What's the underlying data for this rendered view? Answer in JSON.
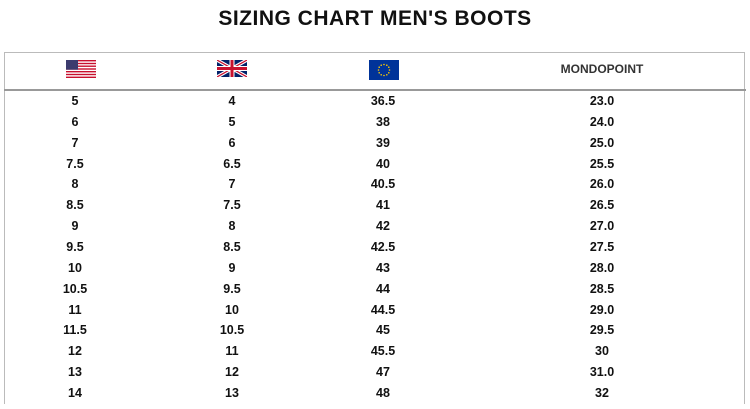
{
  "title": "SIZING CHART MEN'S BOOTS",
  "table": {
    "header_label": "MONDOPOINT",
    "rows": [
      [
        "5",
        "4",
        "36.5",
        "23.0"
      ],
      [
        "6",
        "5",
        "38",
        "24.0"
      ],
      [
        "7",
        "6",
        "39",
        "25.0"
      ],
      [
        "7.5",
        "6.5",
        "40",
        "25.5"
      ],
      [
        "8",
        "7",
        "40.5",
        "26.0"
      ],
      [
        "8.5",
        "7.5",
        "41",
        "26.5"
      ],
      [
        "9",
        "8",
        "42",
        "27.0"
      ],
      [
        "9.5",
        "8.5",
        "42.5",
        "27.5"
      ],
      [
        "10",
        "9",
        "43",
        "28.0"
      ],
      [
        "10.5",
        "9.5",
        "44",
        "28.5"
      ],
      [
        "11",
        "10",
        "44.5",
        "29.0"
      ],
      [
        "11.5",
        "10.5",
        "45",
        "29.5"
      ],
      [
        "12",
        "11",
        "45.5",
        "30"
      ],
      [
        "13",
        "12",
        "47",
        "31.0"
      ],
      [
        "14",
        "13",
        "48",
        "32"
      ]
    ]
  }
}
